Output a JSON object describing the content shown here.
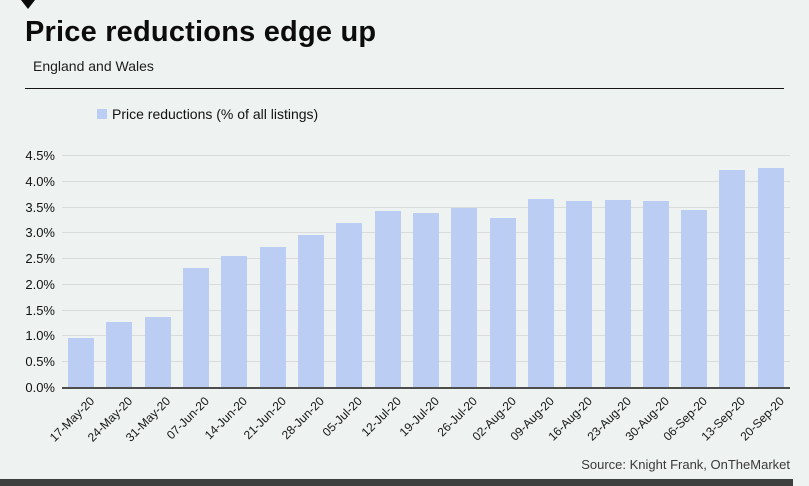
{
  "header": {
    "title": "Price reductions edge up",
    "subtitle": "England and Wales"
  },
  "legend": {
    "label": "Price reductions (% of all listings)",
    "swatch_color": "#bccdf3"
  },
  "chart_data": {
    "type": "bar",
    "title": "Price reductions edge up",
    "subtitle": "England and Wales",
    "series_name": "Price reductions (% of all listings)",
    "categories": [
      "17-May-20",
      "24-May-20",
      "31-May-20",
      "07-Jun-20",
      "14-Jun-20",
      "21-Jun-20",
      "28-Jun-20",
      "05-Jul-20",
      "12-Jul-20",
      "19-Jul-20",
      "26-Jul-20",
      "02-Aug-20",
      "09-Aug-20",
      "16-Aug-20",
      "23-Aug-20",
      "30-Aug-20",
      "06-Sep-20",
      "13-Sep-20",
      "20-Sep-20"
    ],
    "values": [
      0.97,
      1.28,
      1.37,
      2.33,
      2.56,
      2.74,
      2.97,
      3.2,
      3.43,
      3.4,
      3.5,
      3.3,
      3.67,
      3.62,
      3.64,
      3.63,
      3.45,
      4.23,
      4.27
    ],
    "xlabel": "",
    "ylabel": "",
    "ylim": [
      0,
      4.5
    ],
    "ytick_step": 0.5,
    "ytick_labels": [
      "0.0%",
      "0.5%",
      "1.0%",
      "1.5%",
      "2.0%",
      "2.5%",
      "3.0%",
      "3.5%",
      "4.0%",
      "4.5%"
    ],
    "grid": true,
    "legend_position": "top-left",
    "bar_color": "#bccdf3",
    "background_color": "#eef2f1"
  },
  "footer": {
    "source": "Source: Knight Frank, OnTheMarket"
  }
}
